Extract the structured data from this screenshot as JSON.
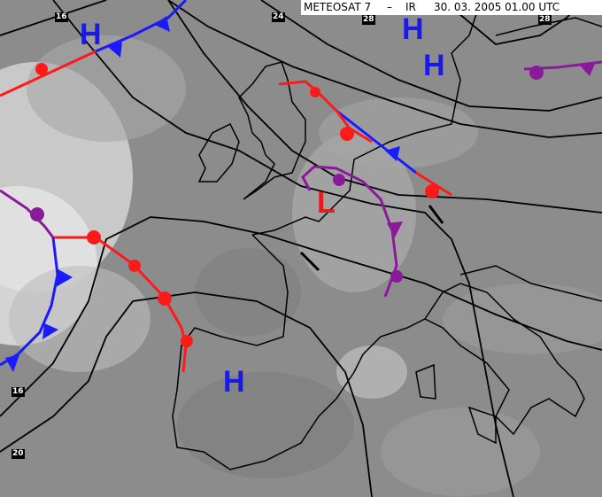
{
  "header": {
    "satellite": "METEOSAT 7",
    "separator": "–",
    "channel": "IR",
    "datetime": "30. 03. 2005 01.00 UTC"
  },
  "pressure_labels": [
    "16",
    "24",
    "28",
    "28",
    "16",
    "20"
  ],
  "pressure_centers": [
    {
      "type": "H",
      "color": "#1a1ae6"
    },
    {
      "type": "H",
      "color": "#1a1ae6"
    },
    {
      "type": "H",
      "color": "#1a1ae6"
    },
    {
      "type": "H",
      "color": "#1a1ae6"
    },
    {
      "type": "L",
      "color": "#e61a1a"
    }
  ],
  "front_colors": {
    "warm": "#ff1a1a",
    "cold": "#1a1aff",
    "occluded": "#8a1a9a",
    "isobar": "#000000"
  }
}
